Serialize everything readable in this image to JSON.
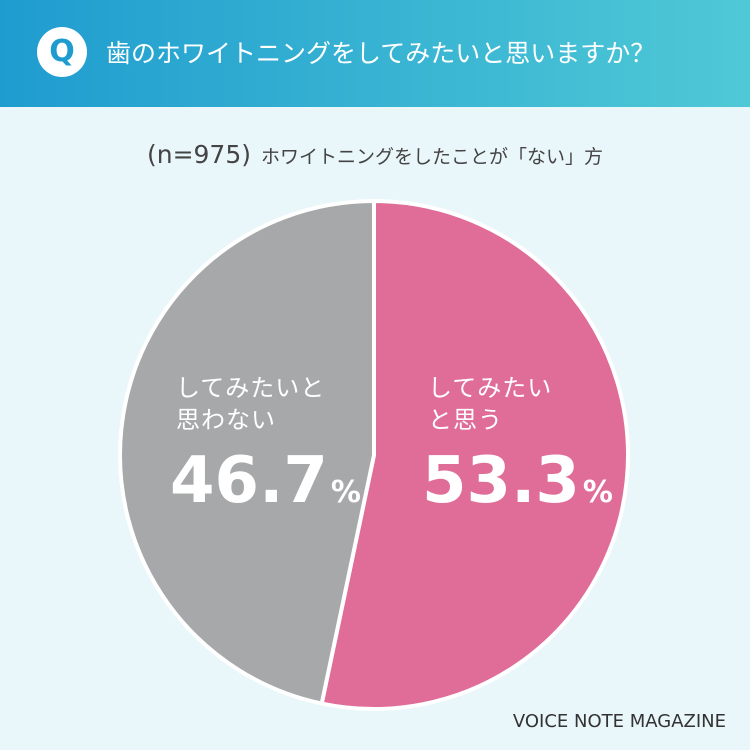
{
  "badge": "Q",
  "chart_data": {
    "type": "pie",
    "title": "歯のホワイトニングをしてみたいと思いますか？",
    "subtitle_n": "(n=975)",
    "subtitle": "ホワイトニングをしたことが「ない」方",
    "categories": [
      "してみたい\nと思う",
      "してみたいと\n思わない"
    ],
    "values": [
      53.3,
      46.7
    ],
    "unit": "%",
    "colors": [
      "#e06d98",
      "#a7a8aa"
    ]
  },
  "footer": "VOICE NOTE MAGAZINE"
}
